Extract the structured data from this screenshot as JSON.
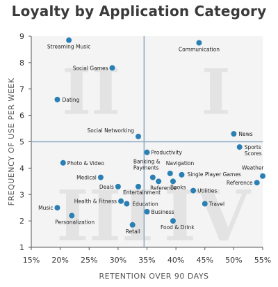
{
  "chart_data": {
    "type": "scatter",
    "title": "Loyalty by Application Category",
    "xlabel": "RETENTION OVER 90 DAYS",
    "ylabel": "FREQUENCY OF USE PER WEEK",
    "xlim": [
      15,
      55
    ],
    "ylim": [
      1,
      9
    ],
    "x_ticks": [
      "15%",
      "20%",
      "25%",
      "30%",
      "35%",
      "40%",
      "45%",
      "50%",
      "55%"
    ],
    "y_ticks": [
      "1",
      "2",
      "3",
      "4",
      "5",
      "6",
      "7",
      "8",
      "9"
    ],
    "quadrant_divider": {
      "x": 34.5,
      "y": 5
    },
    "quadrant_labels": [
      "I",
      "II",
      "III",
      "IV"
    ],
    "point_color": "#2a7fb5",
    "grid": false,
    "points": [
      {
        "label": "Streaming Music",
        "x": 21.5,
        "y": 8.85
      },
      {
        "label": "Communication",
        "x": 44,
        "y": 8.75
      },
      {
        "label": "Social Games",
        "x": 29,
        "y": 7.8
      },
      {
        "label": "Dating",
        "x": 19.5,
        "y": 6.6
      },
      {
        "label": "Social Networking",
        "x": 33.5,
        "y": 5.2
      },
      {
        "label": "News",
        "x": 50,
        "y": 5.3
      },
      {
        "label": "Sports Scores",
        "x": 51,
        "y": 4.8
      },
      {
        "label": "Productivity",
        "x": 35,
        "y": 4.6
      },
      {
        "label": "Photo & Video",
        "x": 20.5,
        "y": 4.2
      },
      {
        "label": "Banking & Payments",
        "x": 36,
        "y": 3.65
      },
      {
        "label": "Navigation",
        "x": 39,
        "y": 3.8
      },
      {
        "label": "Single Player Games",
        "x": 41,
        "y": 3.75
      },
      {
        "label": "Weather",
        "x": 55,
        "y": 3.7
      },
      {
        "label": "Medical",
        "x": 27,
        "y": 3.65
      },
      {
        "label": "Books",
        "x": 39.5,
        "y": 3.5
      },
      {
        "label": "Reference",
        "x": 37,
        "y": 3.5
      },
      {
        "label": "Reference",
        "x": 54,
        "y": 3.45
      },
      {
        "label": "Deals",
        "x": 30,
        "y": 3.3
      },
      {
        "label": "Entertainment",
        "x": 33.5,
        "y": 3.3
      },
      {
        "label": "Utilities",
        "x": 43,
        "y": 3.15
      },
      {
        "label": "Health & Fitness",
        "x": 30.5,
        "y": 2.75
      },
      {
        "label": "Education",
        "x": 31.5,
        "y": 2.65
      },
      {
        "label": "Travel",
        "x": 45,
        "y": 2.65
      },
      {
        "label": "Music",
        "x": 19.5,
        "y": 2.5
      },
      {
        "label": "Business",
        "x": 35,
        "y": 2.35
      },
      {
        "label": "Personalization",
        "x": 22,
        "y": 2.2
      },
      {
        "label": "Food & Drink",
        "x": 39.5,
        "y": 2.0
      },
      {
        "label": "Retail",
        "x": 32.5,
        "y": 1.85
      }
    ]
  }
}
